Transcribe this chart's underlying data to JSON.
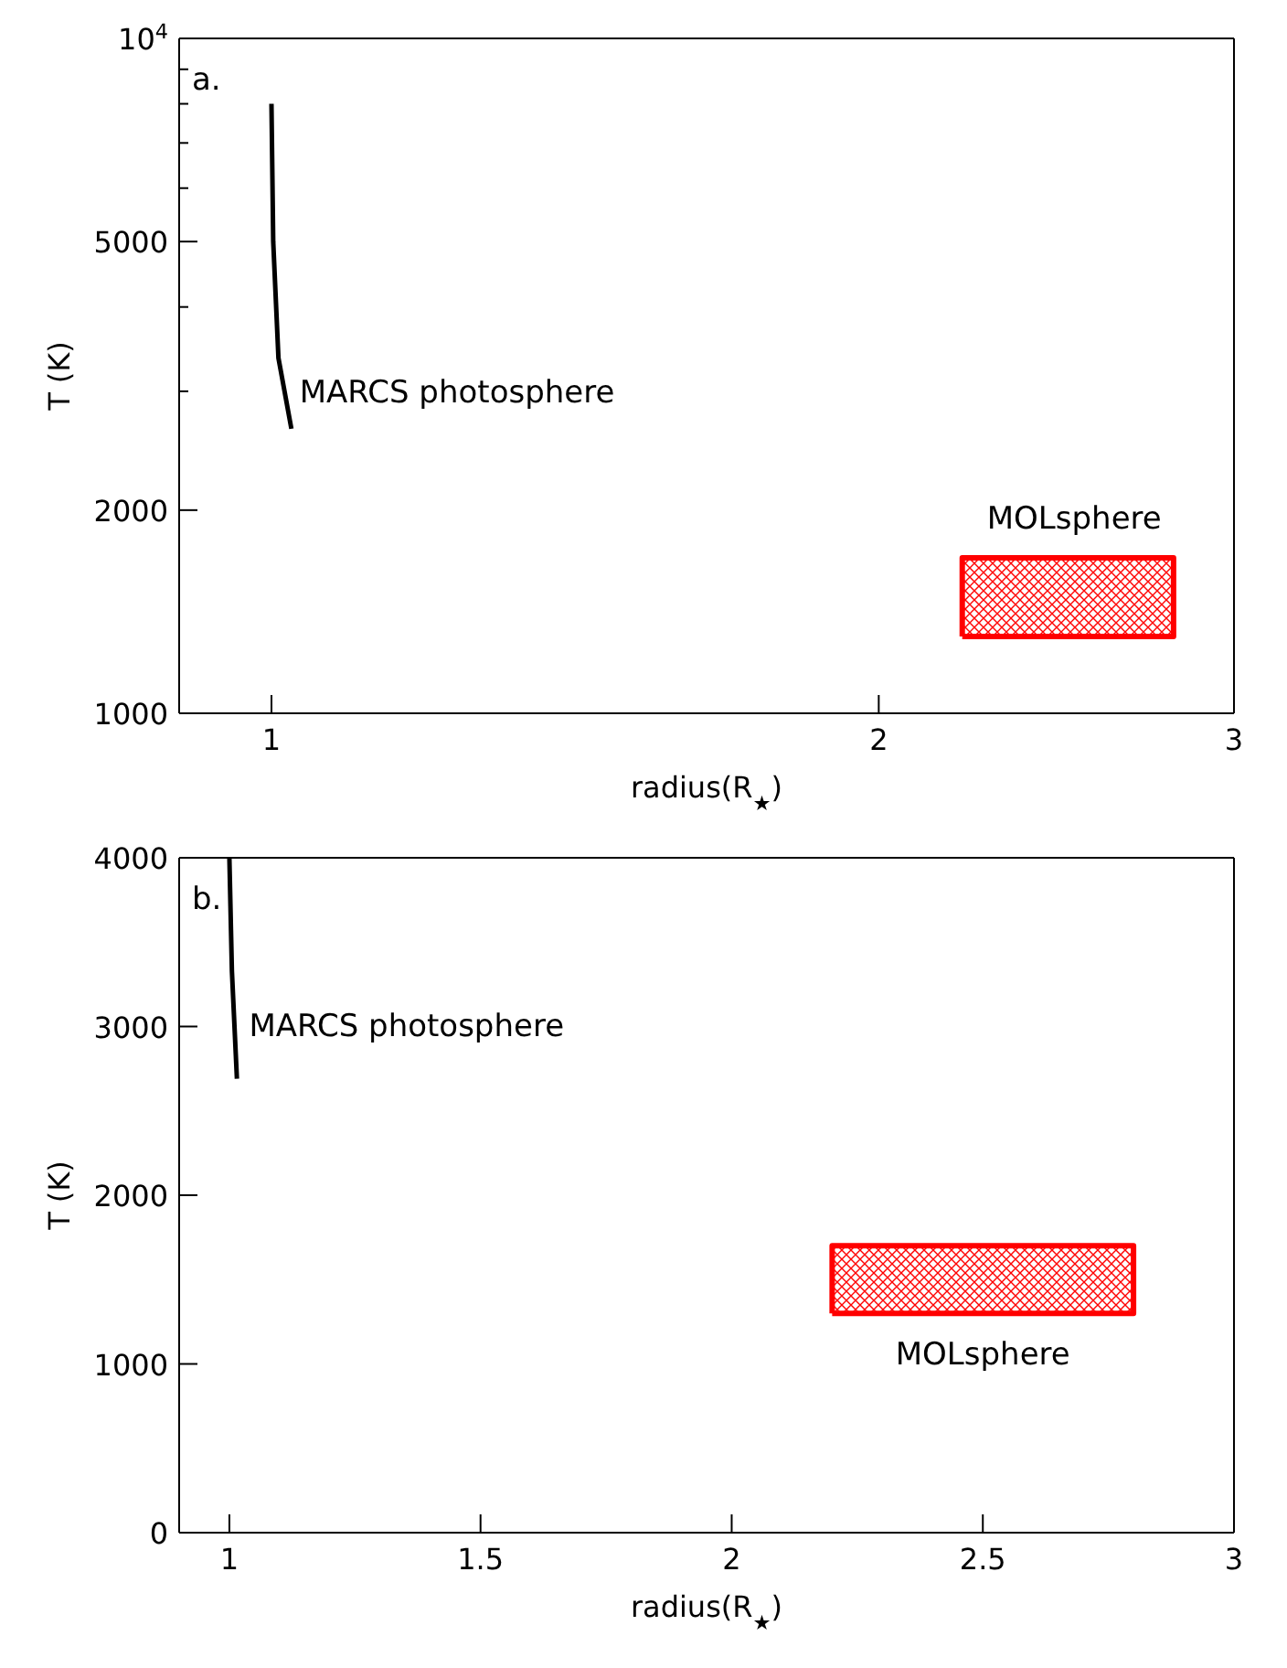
{
  "chart_data": [
    {
      "type": "line",
      "xlabel": "radius(R$_{★}$)",
      "ylabel": "T (K)",
      "log": "xy",
      "xlim": [
        0.9,
        3
      ],
      "xticks": [
        1,
        2,
        3
      ],
      "ylim": [
        1000,
        10000
      ],
      "yticks": [
        1000,
        2000,
        {
          "value": 3000,
          "label": null
        },
        {
          "value": 4000,
          "label": null
        },
        5000,
        {
          "value": 6000,
          "label": null
        },
        {
          "value": 7000,
          "label": null
        },
        {
          "value": 8000,
          "label": null
        },
        {
          "value": 9000,
          "label": null
        },
        {
          "value": 10000,
          "label": "10$^{4}$"
        }
      ],
      "grid": false,
      "series": [
        {
          "name": "MARCS photosphere",
          "color": "#000000",
          "x": [
            1.0,
            1.002,
            1.008,
            1.023
          ],
          "values": [
            8000,
            5000,
            3360,
            2640
          ]
        },
        {
          "type": "area",
          "name": "MOLsphere",
          "color": "#ff0000",
          "x": [
            2.2,
            2.2,
            2.8,
            2.8,
            2.2
          ],
          "values": [
            1300,
            1700,
            1700,
            1300,
            1300
          ]
        }
      ],
      "annotations": [
        "a."
      ]
    },
    {
      "type": "line",
      "xlabel": "radius(R$_{★}$)",
      "ylabel": "T (K)",
      "xlim": [
        0.9,
        3
      ],
      "xticks": [
        1,
        1.5,
        2,
        2.5,
        3
      ],
      "ylim": [
        0,
        4000
      ],
      "yticks": [
        0,
        1000,
        2000,
        3000,
        4000
      ],
      "grid": false,
      "series": [
        {
          "name": "MARCS photosphere",
          "color": "#000000",
          "x": [
            1.0,
            1.005,
            1.015
          ],
          "values": [
            4000,
            3330,
            2690
          ]
        },
        {
          "type": "area",
          "name": "MOLsphere",
          "color": "#ff0000",
          "x": [
            2.2,
            2.2,
            2.8,
            2.8,
            2.2
          ],
          "values": [
            1300,
            1700,
            1700,
            1300,
            1300
          ]
        }
      ],
      "annotations": [
        "b."
      ]
    }
  ]
}
